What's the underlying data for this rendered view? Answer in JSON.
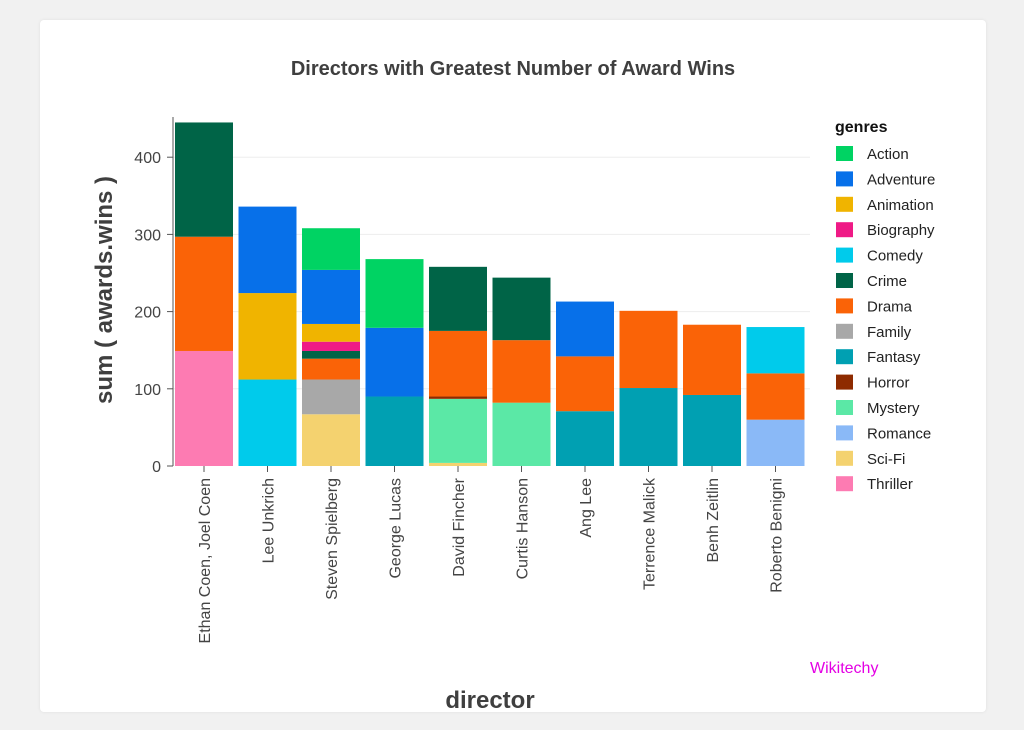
{
  "chart_data": {
    "type": "bar",
    "stacked": true,
    "title": "Directors with Greatest Number of Award Wins",
    "xlabel": "director",
    "ylabel": "sum ( awards.wins )",
    "ylim": [
      0,
      450
    ],
    "yticks": [
      0,
      100,
      200,
      300,
      400
    ],
    "grid": true,
    "legend_title": "genres",
    "legend_position": "right",
    "genres": [
      {
        "name": "Action",
        "color": "#00d363"
      },
      {
        "name": "Adventure",
        "color": "#0770e9"
      },
      {
        "name": "Animation",
        "color": "#f0b400"
      },
      {
        "name": "Biography",
        "color": "#ef1a86"
      },
      {
        "name": "Comedy",
        "color": "#00cbeb"
      },
      {
        "name": "Crime",
        "color": "#006447"
      },
      {
        "name": "Drama",
        "color": "#fa6307"
      },
      {
        "name": "Family",
        "color": "#a8a8a8"
      },
      {
        "name": "Fantasy",
        "color": "#00a0b2"
      },
      {
        "name": "Horror",
        "color": "#8e2b00"
      },
      {
        "name": "Mystery",
        "color": "#5be8a6"
      },
      {
        "name": "Romance",
        "color": "#8ab9f7"
      },
      {
        "name": "Sci-Fi",
        "color": "#f4d26f"
      },
      {
        "name": "Thriller",
        "color": "#fd7bb2"
      }
    ],
    "categories": [
      "Ethan Coen, Joel Coen",
      "Lee Unkrich",
      "Steven Spielberg",
      "George Lucas",
      "David Fincher",
      "Curtis Hanson",
      "Ang Lee",
      "Terrence Malick",
      "Benh Zeitlin",
      "Roberto Benigni"
    ],
    "stacks": [
      [
        {
          "genre": "Thriller",
          "value": 149
        },
        {
          "genre": "Drama",
          "value": 148
        },
        {
          "genre": "Crime",
          "value": 148
        }
      ],
      [
        {
          "genre": "Comedy",
          "value": 112
        },
        {
          "genre": "Animation",
          "value": 112
        },
        {
          "genre": "Adventure",
          "value": 112
        }
      ],
      [
        {
          "genre": "Sci-Fi",
          "value": 67
        },
        {
          "genre": "Family",
          "value": 45
        },
        {
          "genre": "Drama",
          "value": 27
        },
        {
          "genre": "Crime",
          "value": 10
        },
        {
          "genre": "Biography",
          "value": 12
        },
        {
          "genre": "Animation",
          "value": 23
        },
        {
          "genre": "Adventure",
          "value": 70
        },
        {
          "genre": "Action",
          "value": 54
        }
      ],
      [
        {
          "genre": "Fantasy",
          "value": 90
        },
        {
          "genre": "Adventure",
          "value": 89
        },
        {
          "genre": "Action",
          "value": 89
        }
      ],
      [
        {
          "genre": "Sci-Fi",
          "value": 4
        },
        {
          "genre": "Mystery",
          "value": 83
        },
        {
          "genre": "Horror",
          "value": 3
        },
        {
          "genre": "Drama",
          "value": 85
        },
        {
          "genre": "Crime",
          "value": 83
        }
      ],
      [
        {
          "genre": "Mystery",
          "value": 82
        },
        {
          "genre": "Drama",
          "value": 81
        },
        {
          "genre": "Crime",
          "value": 81
        }
      ],
      [
        {
          "genre": "Fantasy",
          "value": 71
        },
        {
          "genre": "Drama",
          "value": 71
        },
        {
          "genre": "Adventure",
          "value": 71
        }
      ],
      [
        {
          "genre": "Fantasy",
          "value": 101
        },
        {
          "genre": "Drama",
          "value": 100
        }
      ],
      [
        {
          "genre": "Fantasy",
          "value": 92
        },
        {
          "genre": "Drama",
          "value": 91
        }
      ],
      [
        {
          "genre": "Romance",
          "value": 60
        },
        {
          "genre": "Drama",
          "value": 60
        },
        {
          "genre": "Comedy",
          "value": 60
        }
      ]
    ]
  },
  "watermark": "Wikitechy"
}
